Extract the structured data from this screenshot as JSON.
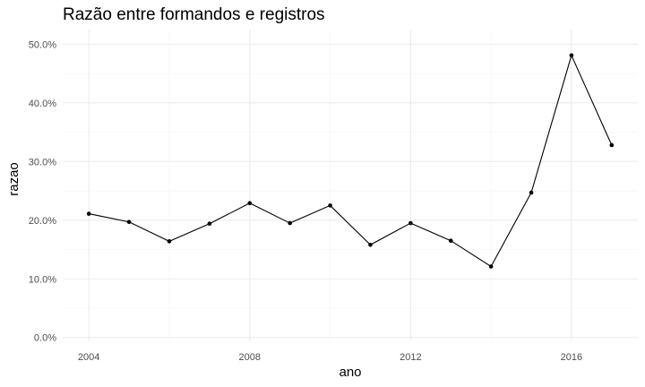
{
  "chart_data": {
    "type": "line",
    "title": "Razão entre formandos e registros",
    "xlabel": "ano",
    "ylabel": "razao",
    "x": [
      2004,
      2005,
      2006,
      2007,
      2008,
      2009,
      2010,
      2011,
      2012,
      2013,
      2014,
      2015,
      2016,
      2017
    ],
    "values": [
      0.211,
      0.197,
      0.164,
      0.194,
      0.229,
      0.195,
      0.225,
      0.158,
      0.195,
      0.165,
      0.121,
      0.247,
      0.481,
      0.328
    ],
    "xlim": [
      2003.35,
      2017.65
    ],
    "ylim": [
      -0.005,
      0.525
    ],
    "x_ticks": [
      2004,
      2008,
      2012,
      2016
    ],
    "x_tick_labels": [
      "2004",
      "2008",
      "2012",
      "2016"
    ],
    "y_ticks": [
      0.0,
      0.1,
      0.2,
      0.3,
      0.4,
      0.5
    ],
    "y_tick_labels": [
      "0.0%",
      "10.0%",
      "20.0%",
      "30.0%",
      "40.0%",
      "50.0%"
    ],
    "grid": true,
    "legend": "none",
    "line_color": "#000000",
    "grid_color": "#ebebeb"
  }
}
